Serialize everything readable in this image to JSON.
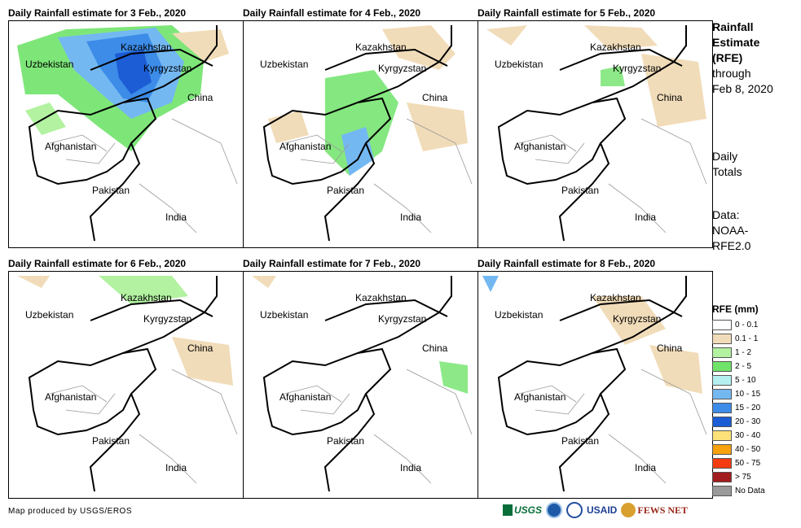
{
  "panels": [
    {
      "title": "Daily Rainfall estimate for 3 Feb., 2020"
    },
    {
      "title": "Daily Rainfall estimate for 4 Feb., 2020"
    },
    {
      "title": "Daily Rainfall estimate for 5 Feb., 2020"
    },
    {
      "title": "Daily Rainfall estimate for 6 Feb., 2020"
    },
    {
      "title": "Daily Rainfall estimate for 7 Feb., 2020"
    },
    {
      "title": "Daily Rainfall estimate for 8 Feb., 2020"
    }
  ],
  "map_labels": {
    "kazakhstan": "Kazakhstan",
    "uzbekistan": "Uzbekistan",
    "kyrgyzstan": "Kyrgyzstan",
    "china": "China",
    "afghanistan": "Afghanistan",
    "pakistan": "Pakistan",
    "india": "India"
  },
  "side": {
    "title_line1": "Rainfall",
    "title_line2": "Estimate",
    "title_line3": "(RFE)",
    "through": "through",
    "date": "Feb 8, 2020",
    "daily": "Daily",
    "totals": "Totals",
    "data_label": "Data:",
    "source_line1": "NOAA-",
    "source_line2": "RFE2.0"
  },
  "legend": {
    "title": "RFE (mm)",
    "items": [
      {
        "label": "0 - 0.1",
        "color": "#ffffff"
      },
      {
        "label": "0.1 - 1",
        "color": "#f1dcb9"
      },
      {
        "label": "1 - 2",
        "color": "#b2f2a0"
      },
      {
        "label": "2 - 5",
        "color": "#70e36a"
      },
      {
        "label": "5 - 10",
        "color": "#b4f0f0"
      },
      {
        "label": "10 - 15",
        "color": "#74b8f2"
      },
      {
        "label": "15 - 20",
        "color": "#3c8ce8"
      },
      {
        "label": "20 - 30",
        "color": "#1c5cd4"
      },
      {
        "label": "30 - 40",
        "color": "#fde27a"
      },
      {
        "label": "40 - 50",
        "color": "#f8a20e"
      },
      {
        "label": "50 - 75",
        "color": "#f43c10"
      },
      {
        "label": "> 75",
        "color": "#a21d1d"
      },
      {
        "label": "No Data",
        "color": "#9a9a9a"
      }
    ]
  },
  "footer": {
    "credit": "Map produced by USGS/EROS"
  },
  "logos": {
    "usgs": "USGS",
    "usaid": "USAID",
    "fewsnet": "FEWS NET"
  }
}
